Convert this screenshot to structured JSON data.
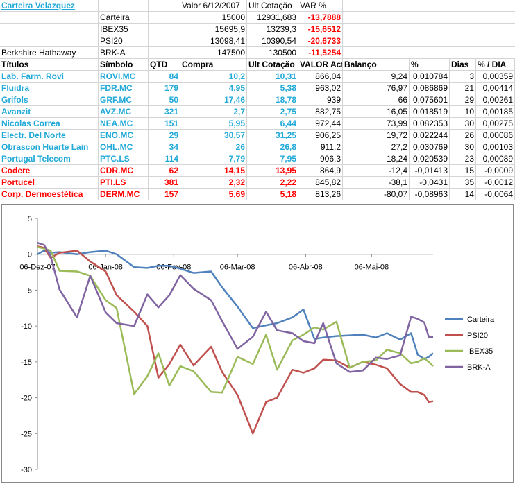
{
  "sheet": {
    "title": "Carteira Velazquez",
    "header": {
      "valor": "Valor 6/12/2007",
      "ult": "Ult Cotação",
      "var": "VAR %"
    },
    "summary": [
      {
        "name": "",
        "label": "Carteira",
        "valor": "15000",
        "ult": "12931,683",
        "var": "-13,7888"
      },
      {
        "name": "",
        "label": "IBEX35",
        "valor": "15695,9",
        "ult": "13239,3",
        "var": "-15,6512"
      },
      {
        "name": "",
        "label": "PSI20",
        "valor": "13098,41",
        "ult": "10390,54",
        "var": "-20,6733"
      },
      {
        "name": "Berkshire Hathaway",
        "label": "BRK-A",
        "valor": "147500",
        "ult": "130500",
        "var": "-11,5254"
      }
    ],
    "columns": [
      "Títulos",
      "Símbolo",
      "QTD",
      "Compra",
      "Ult Cotação",
      "VALOR Actual",
      "Balanço",
      "%",
      "Dias",
      "% / DIA"
    ],
    "positions": [
      {
        "titulo": "Lab. Farm. Rovi",
        "simbolo": "ROVI.MC",
        "qtd": "84",
        "compra": "10,2",
        "ult": "10,31",
        "valor": "866,04",
        "balanco": "9,24",
        "pct": "0,010784",
        "dias": "3",
        "pctdia": "0,00359",
        "status": "up"
      },
      {
        "titulo": "Fluidra",
        "simbolo": "FDR.MC",
        "qtd": "179",
        "compra": "4,95",
        "ult": "5,38",
        "valor": "963,02",
        "balanco": "76,97",
        "pct": "0,086869",
        "dias": "21",
        "pctdia": "0,00414",
        "status": "up"
      },
      {
        "titulo": "Grifols",
        "simbolo": "GRF.MC",
        "qtd": "50",
        "compra": "17,46",
        "ult": "18,78",
        "valor": "939",
        "balanco": "66",
        "pct": "0,075601",
        "dias": "29",
        "pctdia": "0,00261",
        "status": "up"
      },
      {
        "titulo": "Avanzit",
        "simbolo": "AVZ.MC",
        "qtd": "321",
        "compra": "2,7",
        "ult": "2,75",
        "valor": "882,75",
        "balanco": "16,05",
        "pct": "0,018519",
        "dias": "10",
        "pctdia": "0,00185",
        "status": "up"
      },
      {
        "titulo": "Nicolas Correa",
        "simbolo": "NEA.MC",
        "qtd": "151",
        "compra": "5,95",
        "ult": "6,44",
        "valor": "972,44",
        "balanco": "73,99",
        "pct": "0,082353",
        "dias": "30",
        "pctdia": "0,00275",
        "status": "up"
      },
      {
        "titulo": "Electr. Del Norte",
        "simbolo": "ENO.MC",
        "qtd": "29",
        "compra": "30,57",
        "ult": "31,25",
        "valor": "906,25",
        "balanco": "19,72",
        "pct": "0,022244",
        "dias": "26",
        "pctdia": "0,00086",
        "status": "up"
      },
      {
        "titulo": "Obrascon Huarte Lain",
        "simbolo": "OHL.MC",
        "qtd": "34",
        "compra": "26",
        "ult": "26,8",
        "valor": "911,2",
        "balanco": "27,2",
        "pct": "0,030769",
        "dias": "30",
        "pctdia": "0,00103",
        "status": "up"
      },
      {
        "titulo": "Portugal Telecom",
        "simbolo": "PTC.LS",
        "qtd": "114",
        "compra": "7,79",
        "ult": "7,95",
        "valor": "906,3",
        "balanco": "18,24",
        "pct": "0,020539",
        "dias": "23",
        "pctdia": "0,00089",
        "status": "up"
      },
      {
        "titulo": "Codere",
        "simbolo": "CDR.MC",
        "qtd": "62",
        "compra": "14,15",
        "ult": "13,95",
        "valor": "864,9",
        "balanco": "-12,4",
        "pct": "-0,01413",
        "dias": "15",
        "pctdia": "-0,0009",
        "status": "down"
      },
      {
        "titulo": "Portucel",
        "simbolo": "PTI.LS",
        "qtd": "381",
        "compra": "2,32",
        "ult": "2,22",
        "valor": "845,82",
        "balanco": "-38,1",
        "pct": "-0,0431",
        "dias": "35",
        "pctdia": "-0,0012",
        "status": "down"
      },
      {
        "titulo": "Corp. Dermoestética",
        "simbolo": "DERM.MC",
        "qtd": "157",
        "compra": "5,69",
        "ult": "5,18",
        "valor": "813,26",
        "balanco": "-80,07",
        "pct": "-0,08963",
        "dias": "14",
        "pctdia": "-0,0064",
        "status": "down"
      }
    ]
  },
  "chart_data": {
    "type": "line",
    "title": "",
    "xlabel": "",
    "ylabel": "",
    "ylim": [
      -30,
      5
    ],
    "y_ticks": [
      "5",
      "0",
      "-5",
      "-10",
      "-15",
      "-20",
      "-25",
      "-30"
    ],
    "x_ticks": [
      "06-Dez-07",
      "06-Jan-08",
      "06-Fev-08",
      "06-Mar-08",
      "06-Abr-08",
      "06-Mai-08"
    ],
    "x_tick_days": [
      0,
      31,
      62,
      91,
      122,
      152
    ],
    "x_range_days": [
      0,
      180
    ],
    "grid": false,
    "legend": "right",
    "series": [
      {
        "name": "Carteira",
        "color": "#4f81bd",
        "x": [
          0,
          3,
          6,
          10,
          18,
          24,
          31,
          36,
          44,
          50,
          55,
          60,
          65,
          71,
          79,
          84,
          91,
          98,
          104,
          109,
          116,
          121,
          126,
          130,
          136,
          142,
          148,
          154,
          159,
          165,
          170,
          173,
          176,
          178,
          180
        ],
        "y": [
          0,
          0.5,
          0.2,
          0.3,
          0.0,
          0.3,
          0.5,
          0.0,
          -1.8,
          -1.9,
          -1.6,
          -1.6,
          -2.0,
          -2.6,
          -2.4,
          -4.6,
          -7.3,
          -10.3,
          -9.9,
          -9.6,
          -8.8,
          -7.7,
          -11.8,
          -11.6,
          -11.4,
          -11.3,
          -11.2,
          -11.6,
          -11.0,
          -11.9,
          -11.0,
          -14.0,
          -14.6,
          -14.3,
          -13.8
        ]
      },
      {
        "name": "PSI20",
        "color": "#c0504d",
        "x": [
          0,
          3,
          6,
          10,
          18,
          24,
          31,
          36,
          44,
          50,
          55,
          60,
          65,
          71,
          79,
          84,
          91,
          98,
          104,
          109,
          116,
          121,
          126,
          130,
          136,
          142,
          148,
          154,
          159,
          165,
          170,
          173,
          176,
          178,
          180
        ],
        "y": [
          1.1,
          0.9,
          -0.5,
          0.2,
          0.5,
          -1.0,
          -2.4,
          -5.7,
          -8.0,
          -10.0,
          -17.2,
          -15.3,
          -12.6,
          -15.5,
          -12.9,
          -16.4,
          -19.6,
          -25.0,
          -20.6,
          -20.0,
          -16.1,
          -16.5,
          -15.9,
          -14.7,
          -14.8,
          -15.8,
          -15.0,
          -15.4,
          -15.9,
          -18.1,
          -19.2,
          -19.2,
          -19.6,
          -20.6,
          -20.5
        ]
      },
      {
        "name": "IBEX35",
        "color": "#9bbb59",
        "x": [
          0,
          3,
          6,
          10,
          18,
          24,
          31,
          36,
          44,
          50,
          55,
          60,
          65,
          71,
          79,
          84,
          91,
          98,
          104,
          109,
          116,
          121,
          126,
          130,
          136,
          142,
          148,
          154,
          159,
          165,
          170,
          173,
          176,
          178,
          180
        ],
        "y": [
          1.0,
          0.8,
          0.5,
          -2.3,
          -2.4,
          -3.0,
          -6.4,
          -7.5,
          -19.5,
          -17.0,
          -13.8,
          -18.3,
          -15.6,
          -16.3,
          -19.2,
          -19.3,
          -14.3,
          -15.3,
          -11.2,
          -16.1,
          -12.0,
          -11.2,
          -10.2,
          -10.5,
          -9.4,
          -15.8,
          -15.0,
          -14.8,
          -13.3,
          -13.8,
          -15.2,
          -15.0,
          -14.5,
          -15.0,
          -15.6
        ]
      },
      {
        "name": "BRK-A",
        "color": "#8064a2",
        "x": [
          0,
          3,
          6,
          10,
          18,
          24,
          31,
          36,
          44,
          50,
          55,
          60,
          65,
          71,
          79,
          84,
          91,
          98,
          104,
          109,
          116,
          121,
          126,
          130,
          136,
          142,
          148,
          154,
          159,
          165,
          170,
          173,
          176,
          178,
          180
        ],
        "y": [
          1.6,
          1.3,
          -0.3,
          -4.9,
          -8.8,
          -3.0,
          -8.1,
          -9.6,
          -10.0,
          -5.6,
          -7.4,
          -5.7,
          -2.9,
          -4.8,
          -6.4,
          -9.3,
          -13.2,
          -11.5,
          -8.0,
          -10.6,
          -11.0,
          -12.1,
          -12.4,
          -9.6,
          -15.2,
          -16.4,
          -16.2,
          -14.4,
          -14.6,
          -14.1,
          -8.7,
          -9.0,
          -9.5,
          -11.5,
          -11.5
        ]
      }
    ]
  }
}
